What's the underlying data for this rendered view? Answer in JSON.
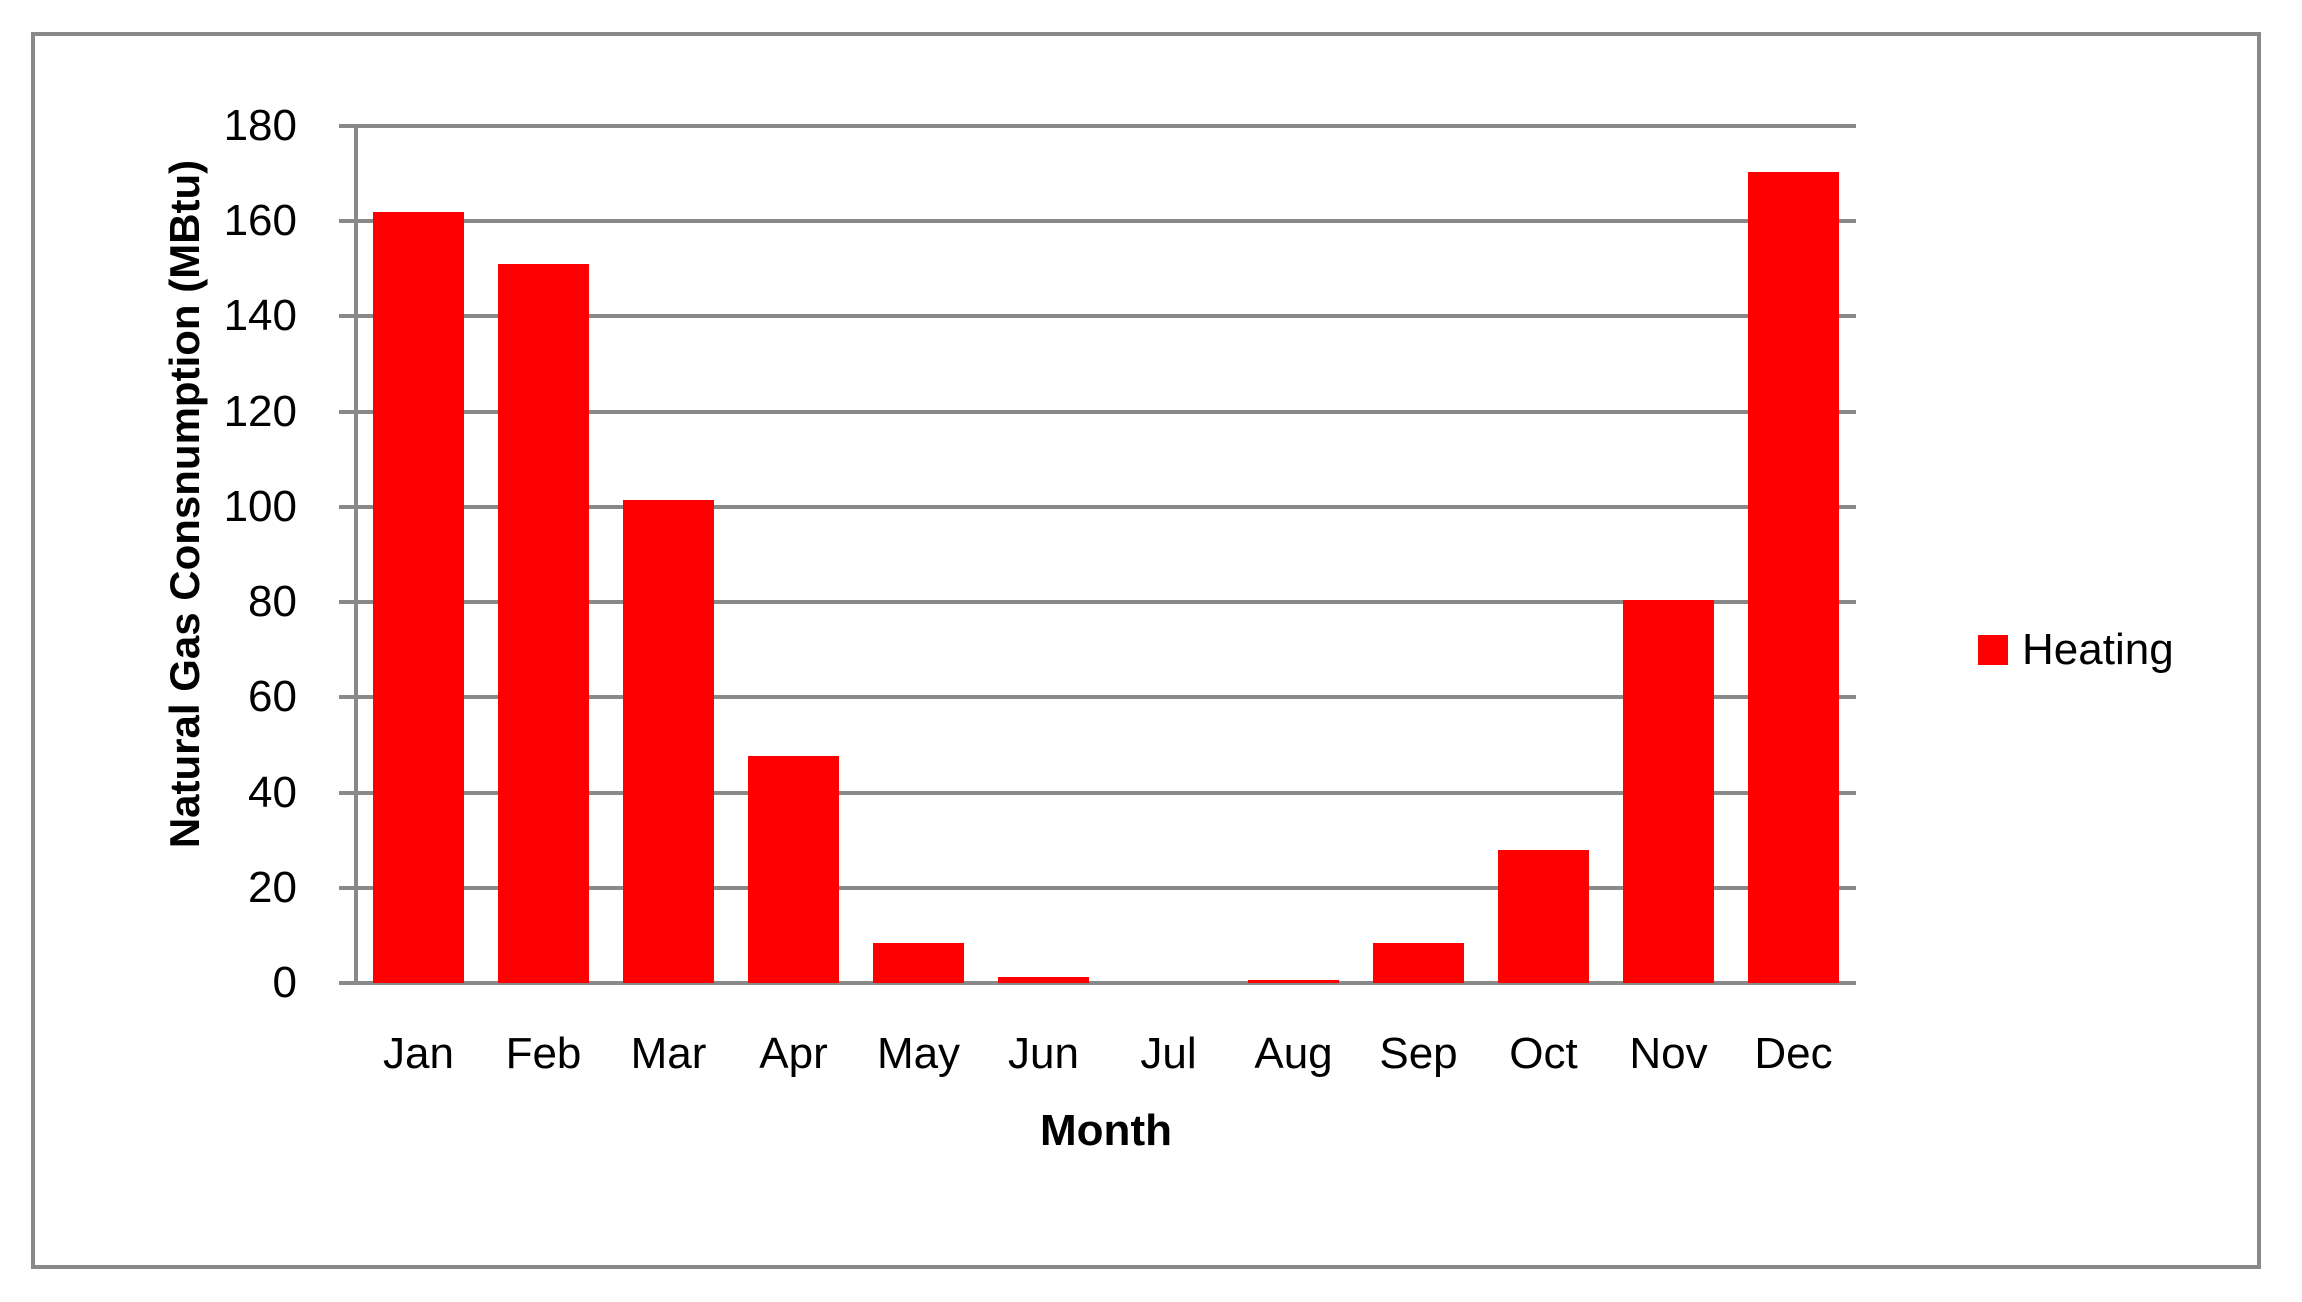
{
  "chart_data": {
    "type": "bar",
    "title": "",
    "categories": [
      "Jan",
      "Feb",
      "Mar",
      "Apr",
      "May",
      "Jun",
      "Jul",
      "Aug",
      "Sep",
      "Oct",
      "Nov",
      "Dec"
    ],
    "series": [
      {
        "name": "Heating",
        "color": "#FF0000",
        "values": [
          162,
          151,
          101.5,
          47.7,
          8.3,
          1.2,
          0,
          0.7,
          8.3,
          27.9,
          80.4,
          170.3
        ]
      }
    ],
    "xlabel": "Month",
    "ylabel": "Natural Gas Consnumption (MBtu)",
    "ylim": [
      0,
      180
    ],
    "yticks": [
      0,
      20,
      40,
      60,
      80,
      100,
      120,
      140,
      160,
      180
    ],
    "grid": true,
    "legend_position": "right"
  },
  "colors": {
    "bar": "#FF0000",
    "axis": "#898989",
    "border": "#898989",
    "background": "#FFFFFF",
    "text": "#000000"
  }
}
